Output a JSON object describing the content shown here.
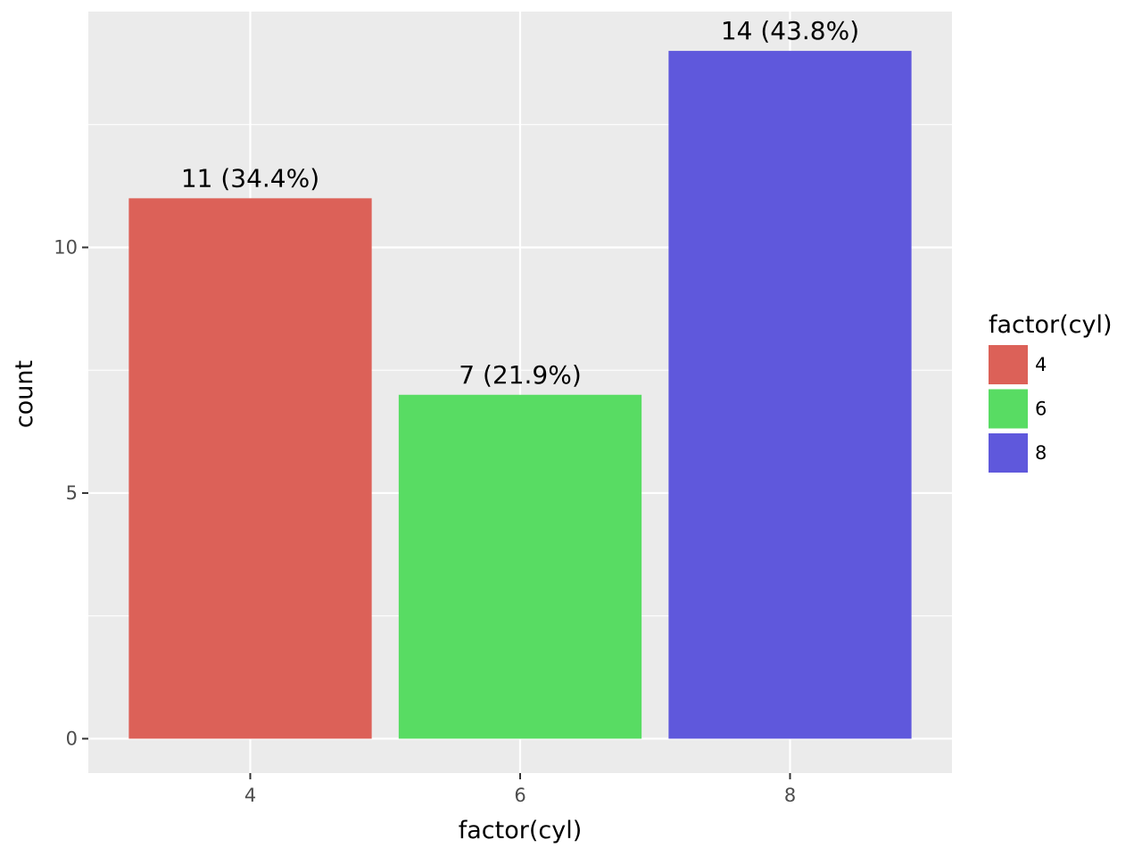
{
  "chart_data": {
    "type": "bar",
    "categories": [
      "4",
      "6",
      "8"
    ],
    "values": [
      11,
      7,
      14
    ],
    "data_labels": [
      "11 (34.4%)",
      "7 (21.9%)",
      "14 (43.8%)"
    ],
    "colors": [
      "#dc6158",
      "#58dc63",
      "#5f58dc"
    ],
    "xlabel": "factor(cyl)",
    "ylabel": "count",
    "ylim": [
      -0.7,
      14.8
    ],
    "yticks": [
      0,
      5,
      10
    ],
    "ytick_labels": [
      "0",
      "5",
      "10"
    ],
    "grid": true,
    "panel_background": "#ebebeb",
    "legend": {
      "title": "factor(cyl)",
      "position": "right",
      "entries": [
        "4",
        "6",
        "8"
      ]
    }
  }
}
